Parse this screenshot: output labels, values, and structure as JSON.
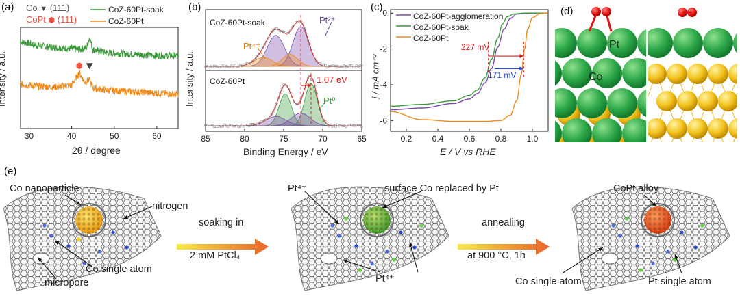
{
  "panels": {
    "a": {
      "label": "(a)",
      "legend": [
        {
          "name": "Co",
          "peak": "(111)",
          "color": "#444444",
          "marker": "triangle"
        },
        {
          "name": "CoPt",
          "peak": "(111)",
          "color": "#f05040",
          "marker": "hexagon"
        },
        {
          "name": "CoZ-60Pt-soak",
          "color": "#3a9a3a"
        },
        {
          "name": "CoZ-60Pt",
          "color": "#f08a1a"
        }
      ],
      "xlabel": "2θ  / degree",
      "ylabel": "Intensity / a.u."
    },
    "b": {
      "label": "(b)",
      "top_sample": "CoZ-60Pt-soak",
      "bottom_sample": "CoZ-60Pt",
      "xlabel": "Binding Energy / eV",
      "ylabel": "Intensity / a.u.",
      "ann_pt2": "Pt²⁺",
      "ann_pt4": "Pt⁴⁺",
      "ann_pt0": "Pt⁰",
      "ann_shift": "1.07 eV"
    },
    "c": {
      "label": "(c)",
      "legend": [
        {
          "name": "CoZ-60Pt-agglomeration",
          "color": "#7a4aa8"
        },
        {
          "name": "CoZ-60Pt-soak",
          "color": "#3a9a3a"
        },
        {
          "name": "CoZ-60Pt",
          "color": "#f08a1a"
        }
      ],
      "xlabel": "E / V vs RHE",
      "ylabel": "j / mA cm⁻²",
      "ann_red": "227 mV",
      "ann_blue": "171 mV"
    },
    "d": {
      "label": "(d)",
      "pt_label": "Pt",
      "co_label": "Co"
    },
    "e": {
      "label": "(e)",
      "co_nanoparticle": "Co nanoparticle",
      "nitrogen": "nitrogen",
      "co_single_atom_1": "Co  single atom",
      "micropore": "micropore",
      "arrow1_top": "soaking in",
      "arrow1_bottom": "2 mM PtCl₄",
      "pt4_top": "Pt⁴⁺",
      "surface_replaced": "surface Co replaced by Pt",
      "pt4_bottom": "Pt⁴⁺",
      "arrow2_top": "annealing",
      "arrow2_bottom": "at 900 °C, 1h",
      "copt_alloy": "CoPt alloy",
      "co_single_atom_2": "Co  single atom",
      "pt_single_atom": "Pt  single atom"
    }
  },
  "chart_data": [
    {
      "type": "line",
      "panel": "a",
      "xlabel": "2θ  / degree",
      "ylabel": "Intensity / a.u.",
      "xlim": [
        28,
        65
      ],
      "xticks": [
        30,
        40,
        50,
        60
      ],
      "series": [
        {
          "name": "CoZ-60Pt-soak",
          "peak_x": 44.2,
          "x": [
            28,
            32,
            36,
            40,
            42,
            43.5,
            44.2,
            45,
            48,
            52,
            56,
            60,
            65
          ],
          "y": [
            0.86,
            0.82,
            0.8,
            0.79,
            0.78,
            0.8,
            0.9,
            0.78,
            0.75,
            0.74,
            0.73,
            0.72,
            0.72
          ]
        },
        {
          "name": "CoZ-60Pt",
          "peak_x": 41.8,
          "x": [
            28,
            32,
            36,
            40,
            41.8,
            43,
            44.2,
            45,
            48,
            52,
            56,
            60,
            65
          ],
          "y": [
            0.44,
            0.42,
            0.41,
            0.43,
            0.55,
            0.46,
            0.48,
            0.4,
            0.38,
            0.37,
            0.36,
            0.35,
            0.34
          ]
        }
      ],
      "markers": [
        {
          "name": "CoPt",
          "x": 41.8
        },
        {
          "name": "Co",
          "x": 44.2
        }
      ]
    },
    {
      "type": "line",
      "panel": "b",
      "xlabel": "Binding Energy / eV",
      "ylabel": "Intensity / a.u.",
      "xlim": [
        85,
        65
      ],
      "xticks": [
        85,
        80,
        75,
        70,
        65
      ],
      "series": [
        {
          "name": "CoZ-60Pt-soak",
          "peaks": [
            {
              "center": 76.0,
              "height": 0.78,
              "width": 1.1,
              "color": "#7a4aa8"
            },
            {
              "center": 72.8,
              "height": 1.0,
              "width": 1.0,
              "color": "#7a4aa8"
            },
            {
              "center": 77.6,
              "height": 0.22,
              "width": 1.2,
              "color": "#f08a1a"
            },
            {
              "center": 74.2,
              "height": 0.3,
              "width": 1.0,
              "color": "#f08a1a"
            }
          ]
        },
        {
          "name": "CoZ-60Pt",
          "peaks": [
            {
              "center": 74.8,
              "height": 0.75,
              "width": 0.8,
              "color": "#3a9a3a"
            },
            {
              "center": 71.5,
              "height": 1.0,
              "width": 0.8,
              "color": "#3a9a3a"
            },
            {
              "center": 76.0,
              "height": 0.22,
              "width": 1.3,
              "color": "#7a4aa8"
            },
            {
              "center": 72.8,
              "height": 0.3,
              "width": 1.2,
              "color": "#7a4aa8"
            }
          ]
        }
      ]
    },
    {
      "type": "line",
      "panel": "c",
      "xlabel": "E / V vs RHE",
      "ylabel": "j / mA cm⁻²",
      "xlim": [
        0.1,
        1.1
      ],
      "ylim": [
        -6.6,
        0.2
      ],
      "xticks": [
        0.2,
        0.4,
        0.6,
        0.8,
        1.0
      ],
      "yticks": [
        0,
        -2,
        -4,
        -6
      ],
      "series": [
        {
          "name": "CoZ-60Pt-agglomeration",
          "x": [
            0.1,
            0.3,
            0.5,
            0.6,
            0.65,
            0.7,
            0.74,
            0.78,
            0.82,
            0.86,
            0.9,
            1.0,
            1.1
          ],
          "y": [
            -5.4,
            -5.3,
            -5.05,
            -4.8,
            -4.5,
            -3.9,
            -3.1,
            -1.9,
            -0.9,
            -0.3,
            -0.05,
            0.0,
            0.0
          ]
        },
        {
          "name": "CoZ-60Pt-soak",
          "x": [
            0.1,
            0.3,
            0.5,
            0.6,
            0.65,
            0.7,
            0.74,
            0.78,
            0.81,
            0.84,
            0.88,
            0.95,
            1.1
          ],
          "y": [
            -5.2,
            -5.1,
            -4.9,
            -4.6,
            -4.3,
            -3.6,
            -2.6,
            -1.4,
            -0.6,
            -0.2,
            -0.05,
            0.0,
            0.0
          ]
        },
        {
          "name": "CoZ-60Pt",
          "x": [
            0.1,
            0.3,
            0.5,
            0.7,
            0.8,
            0.86,
            0.9,
            0.93,
            0.95,
            0.97,
            1.0,
            1.05,
            1.1
          ],
          "y": [
            -5.5,
            -5.95,
            -6.05,
            -6.05,
            -6.0,
            -5.7,
            -4.9,
            -3.4,
            -2.0,
            -0.9,
            -0.25,
            -0.03,
            0.0
          ]
        }
      ]
    }
  ]
}
